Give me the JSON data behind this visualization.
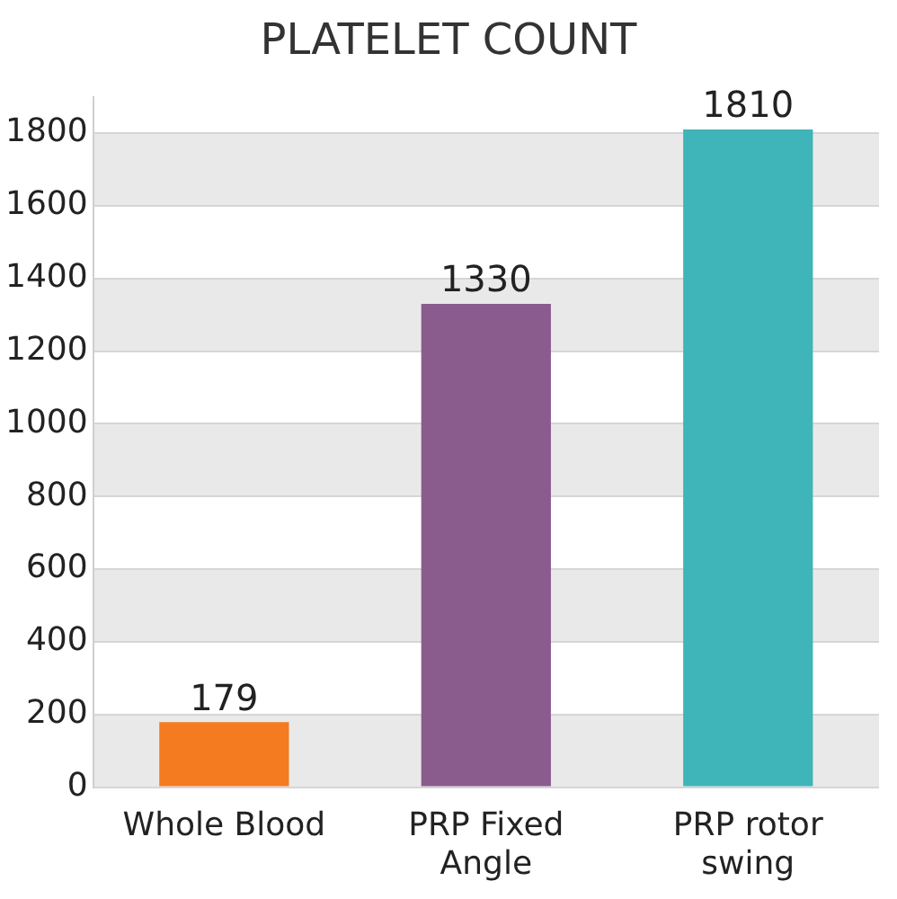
{
  "chart_data": {
    "type": "bar",
    "title": "PLATELET COUNT",
    "categories": [
      "Whole Blood",
      "PRP Fixed Angle",
      "PRP rotor swing"
    ],
    "values": [
      179,
      1330,
      1810
    ],
    "colors": [
      "#f47b20",
      "#8a5c8e",
      "#3fb4b9"
    ],
    "ylim": [
      0,
      1900
    ],
    "yticks": [
      0,
      200,
      400,
      600,
      800,
      1000,
      1200,
      1400,
      1600,
      1800
    ],
    "grid": "y",
    "data_labels": true
  }
}
